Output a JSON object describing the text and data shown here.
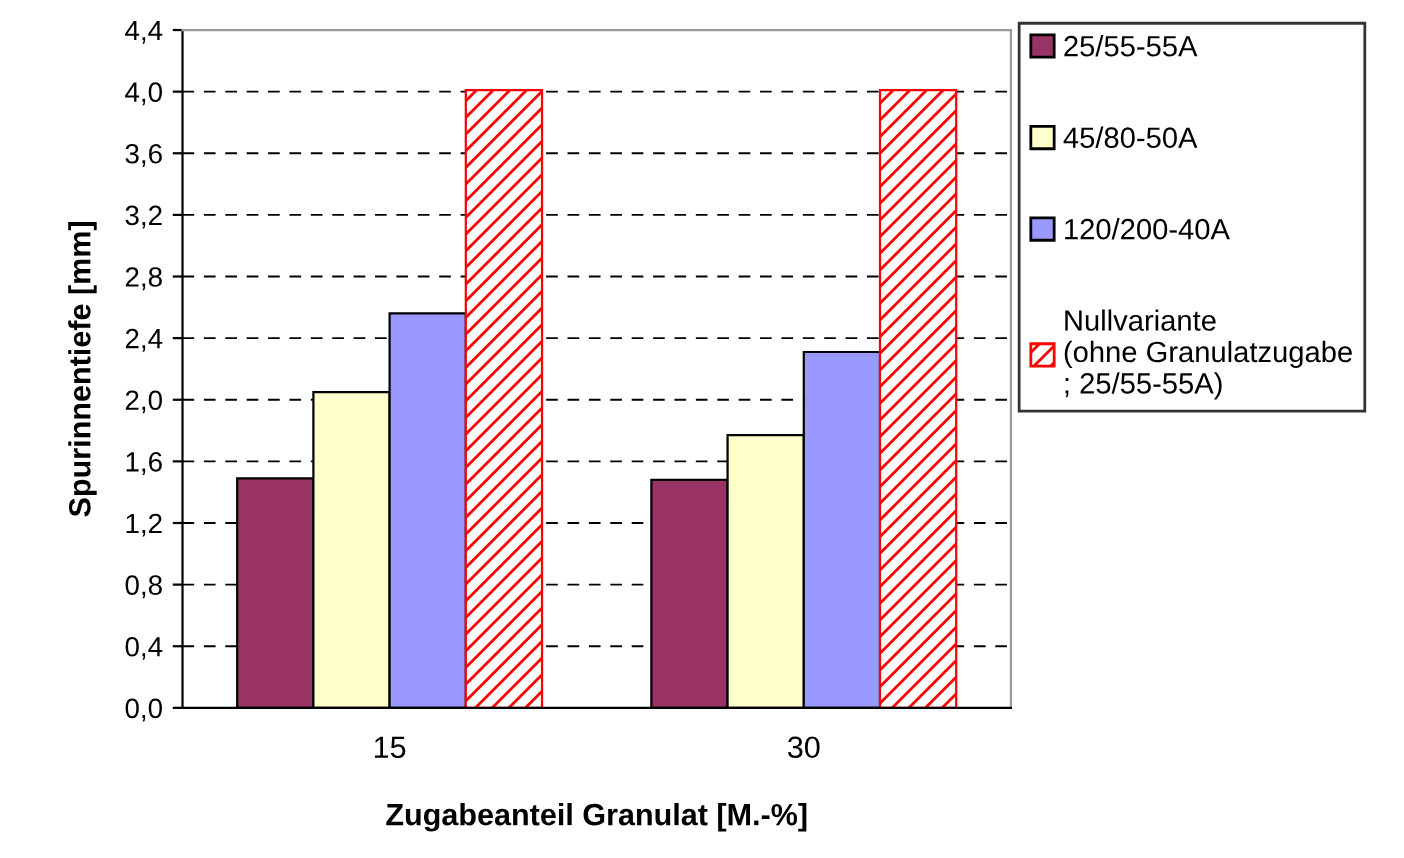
{
  "chart_data": {
    "type": "bar",
    "xlabel": "Zugabeanteil Granulat [M.-%]",
    "ylabel": "Spurinnentiefe [mm]",
    "categories": [
      "15",
      "30"
    ],
    "series": [
      {
        "name": "25/55-55A",
        "color": "#993366",
        "values": [
          1.49,
          1.48
        ]
      },
      {
        "name": "45/80-50A",
        "color": "#ffffcc",
        "values": [
          2.05,
          1.77
        ]
      },
      {
        "name": "120/200-40A",
        "color": "#9999ff",
        "values": [
          2.56,
          2.31
        ]
      },
      {
        "name": "Nullvariante\n(ohne Granulatzugabe\n; 25/55-55A)",
        "color": "#ff0000",
        "values": [
          4.01,
          4.01
        ]
      }
    ],
    "ylim": [
      0,
      4.4
    ],
    "yticks": [
      {
        "value": 0,
        "label": "0,0"
      },
      {
        "value": 0.4,
        "label": "0,4"
      },
      {
        "value": 0.8,
        "label": "0,8"
      },
      {
        "value": 1.2,
        "label": "1,2"
      },
      {
        "value": 1.6,
        "label": "1,6"
      },
      {
        "value": 2.0,
        "label": "2,0"
      },
      {
        "value": 2.4,
        "label": "2,4"
      },
      {
        "value": 2.8,
        "label": "2,8"
      },
      {
        "value": 3.2,
        "label": "3,2"
      },
      {
        "value": 3.6,
        "label": "3,6"
      },
      {
        "value": 4.0,
        "label": "4,0"
      },
      {
        "value": 4.4,
        "label": "4,4"
      }
    ],
    "grid": "y",
    "legend": "right"
  }
}
